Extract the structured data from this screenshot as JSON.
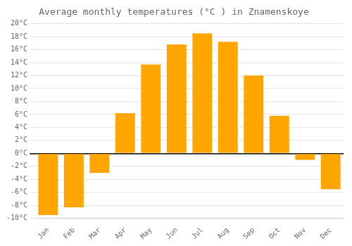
{
  "chart_data": {
    "type": "bar",
    "title": "Average monthly temperatures (°C ) in Znamenskoye",
    "categories": [
      "Jan",
      "Feb",
      "Mar",
      "Apr",
      "May",
      "Jun",
      "Jul",
      "Aug",
      "Sep",
      "Oct",
      "Nov",
      "Dec"
    ],
    "values": [
      -9.5,
      -8.3,
      -3.0,
      6.2,
      13.7,
      16.8,
      18.5,
      17.2,
      12.0,
      5.8,
      -1.0,
      -5.5
    ],
    "color": "#FFA500",
    "ylim": [
      -10,
      20
    ],
    "yticks": [
      {
        "value": -10,
        "label": "-10°C"
      },
      {
        "value": -8,
        "label": "-8°C"
      },
      {
        "value": -6,
        "label": "-6°C"
      },
      {
        "value": -4,
        "label": "-4°C"
      },
      {
        "value": -2,
        "label": "-2°C"
      },
      {
        "value": 0,
        "label": "0°C"
      },
      {
        "value": 2,
        "label": "2°C"
      },
      {
        "value": 4,
        "label": "4°C"
      },
      {
        "value": 6,
        "label": "6°C"
      },
      {
        "value": 8,
        "label": "8°C"
      },
      {
        "value": 10,
        "label": "10°C"
      },
      {
        "value": 12,
        "label": "12°C"
      },
      {
        "value": 14,
        "label": "14°C"
      },
      {
        "value": 16,
        "label": "16°C"
      },
      {
        "value": 18,
        "label": "18°C"
      },
      {
        "value": 20,
        "label": "20°C"
      }
    ],
    "grid": true
  }
}
